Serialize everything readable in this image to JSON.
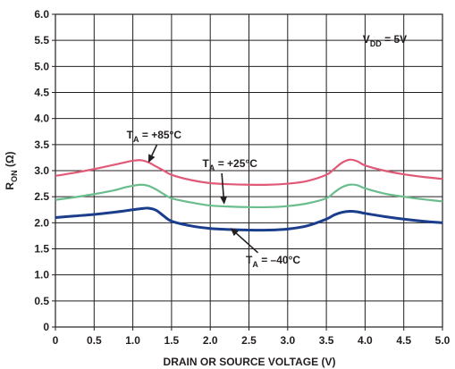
{
  "chart_data": {
    "type": "line",
    "xlabel": "DRAIN OR SOURCE VOLTAGE (V)",
    "ylabel": "R",
    "ylabel_sub": "ON",
    "ylabel_unit": " (Ω)",
    "xlim": [
      0,
      5.0
    ],
    "ylim": [
      0,
      6.0
    ],
    "grid": true,
    "x_ticks": [
      "0",
      "0.5",
      "1.0",
      "1.5",
      "2.0",
      "2.5",
      "3.0",
      "3.5",
      "4.0",
      "4.5",
      "5.0"
    ],
    "y_ticks": [
      "0",
      "0.5",
      "1.0",
      "1.5",
      "2.0",
      "2.5",
      "3.0",
      "3.5",
      "4.0",
      "4.5",
      "5.0",
      "5.5",
      "6.0"
    ],
    "annotations": [
      {
        "main": "V",
        "sub": "DD",
        "rest": " = 5V",
        "x": 3.97,
        "y": 5.45
      },
      {
        "main": "T",
        "sub": "A",
        "rest": " = +85°C",
        "x": 0.92,
        "y": 3.62,
        "arrow_to": [
          1.2,
          3.15
        ]
      },
      {
        "main": "T",
        "sub": "A",
        "rest": " = +25°C",
        "x": 1.9,
        "y": 3.07,
        "arrow_to": [
          2.18,
          2.35
        ]
      },
      {
        "main": "T",
        "sub": "A",
        "rest": " = –40°C",
        "x": 2.46,
        "y": 1.22,
        "arrow_to": [
          2.26,
          1.9
        ]
      }
    ],
    "series": [
      {
        "color": "#e05a78",
        "x": [
          0,
          0.25,
          0.5,
          0.75,
          0.9,
          1.0,
          1.1,
          1.2,
          1.3,
          1.4,
          1.5,
          1.75,
          2.0,
          2.25,
          2.5,
          2.75,
          3.0,
          3.25,
          3.5,
          3.6,
          3.7,
          3.8,
          3.9,
          4.0,
          4.25,
          4.5,
          4.75,
          5.0
        ],
        "values": [
          2.9,
          2.96,
          3.03,
          3.11,
          3.16,
          3.19,
          3.2,
          3.16,
          3.08,
          3.0,
          2.92,
          2.82,
          2.76,
          2.74,
          2.73,
          2.73,
          2.75,
          2.8,
          2.92,
          3.03,
          3.15,
          3.21,
          3.18,
          3.1,
          3.0,
          2.93,
          2.88,
          2.84
        ]
      },
      {
        "color": "#6bbd8e",
        "x": [
          0,
          0.25,
          0.5,
          0.75,
          0.9,
          1.0,
          1.1,
          1.2,
          1.3,
          1.4,
          1.5,
          1.75,
          2.0,
          2.25,
          2.5,
          2.75,
          3.0,
          3.25,
          3.5,
          3.6,
          3.7,
          3.8,
          3.9,
          4.0,
          4.25,
          4.5,
          4.75,
          5.0
        ],
        "values": [
          2.44,
          2.49,
          2.55,
          2.62,
          2.68,
          2.71,
          2.73,
          2.71,
          2.64,
          2.55,
          2.47,
          2.39,
          2.33,
          2.31,
          2.3,
          2.3,
          2.32,
          2.37,
          2.47,
          2.58,
          2.68,
          2.73,
          2.72,
          2.66,
          2.56,
          2.5,
          2.45,
          2.41
        ]
      },
      {
        "color": "#1a3d8c",
        "x": [
          0,
          0.25,
          0.5,
          0.75,
          1.0,
          1.1,
          1.2,
          1.3,
          1.4,
          1.5,
          1.75,
          2.0,
          2.25,
          2.5,
          2.75,
          3.0,
          3.25,
          3.5,
          3.6,
          3.7,
          3.8,
          3.9,
          4.0,
          4.25,
          4.5,
          4.75,
          5.0
        ],
        "values": [
          2.1,
          2.13,
          2.16,
          2.2,
          2.25,
          2.27,
          2.28,
          2.24,
          2.13,
          2.03,
          1.94,
          1.89,
          1.87,
          1.86,
          1.86,
          1.88,
          1.94,
          2.07,
          2.15,
          2.2,
          2.22,
          2.21,
          2.18,
          2.12,
          2.07,
          2.03,
          2.0
        ]
      }
    ]
  }
}
